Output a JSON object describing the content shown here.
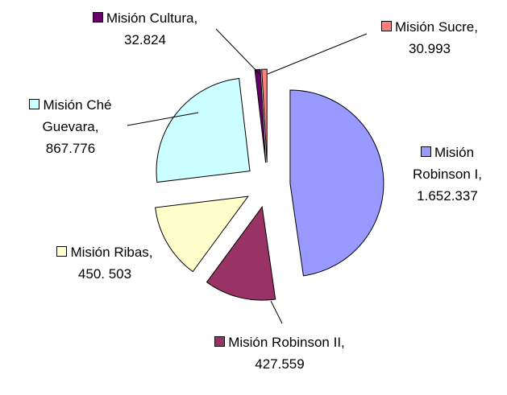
{
  "chart_data": {
    "type": "pie",
    "categories": [
      "Misión Robinson I,",
      "Misión Robinson II,",
      "Misión Ribas,",
      "Misión Ché Guevara,",
      "Misión Cultura,",
      "Misión Sucre,"
    ],
    "values": [
      1652337,
      427559,
      450503,
      867776,
      32824,
      30993
    ],
    "value_labels": [
      "1.652.337",
      "427.559",
      "450. 503",
      "867.776",
      "32.824",
      "30.993"
    ],
    "colors": [
      "#9999ff",
      "#993366",
      "#ffffcc",
      "#ccffff",
      "#660066",
      "#ff8080"
    ]
  }
}
